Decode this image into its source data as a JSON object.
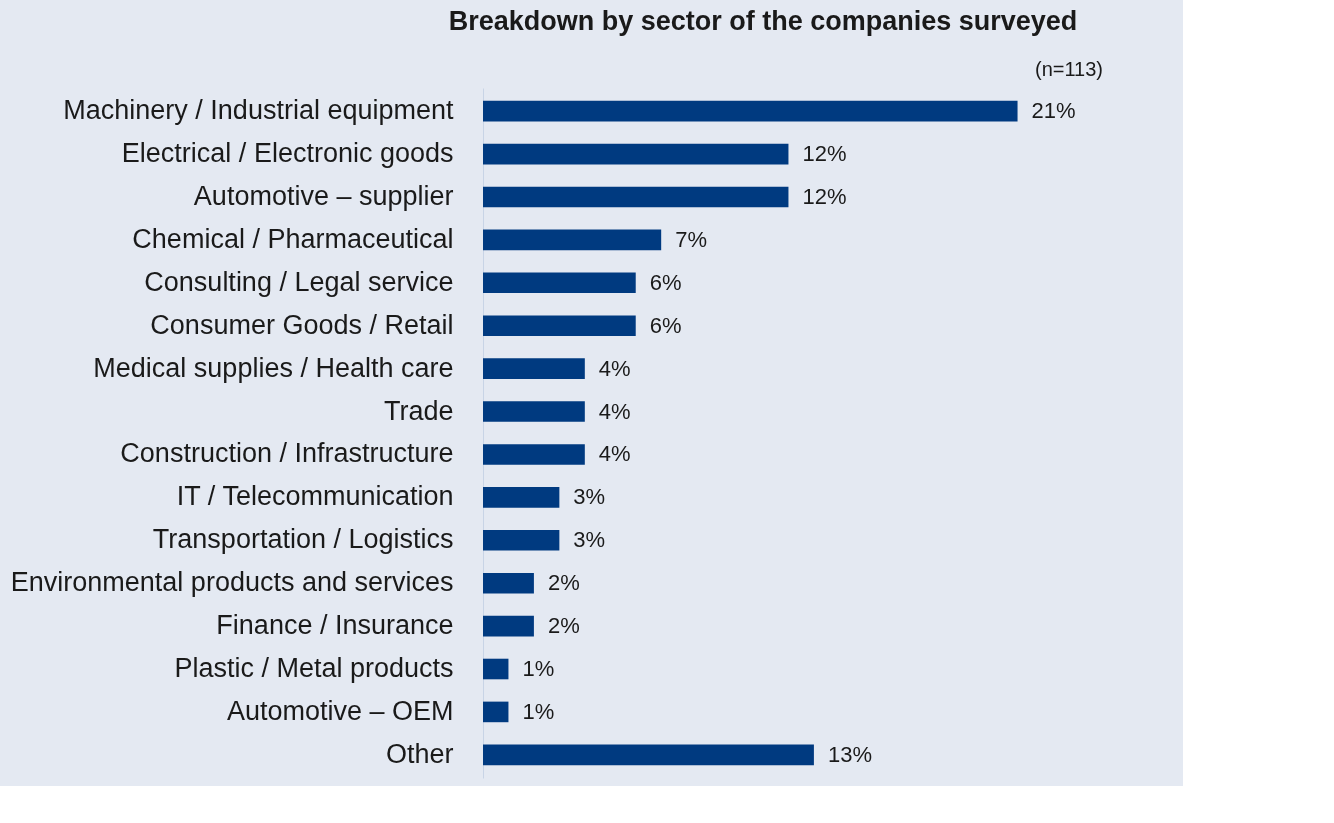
{
  "chart_data": {
    "type": "bar",
    "orientation": "horizontal",
    "title": "Breakdown by sector of the companies surveyed",
    "annotations": [
      "(n=113)"
    ],
    "categories": [
      "Machinery / Industrial equipment",
      "Electrical / Electronic goods",
      "Automotive – supplier",
      "Chemical / Pharmaceutical",
      "Consulting / Legal service",
      "Consumer Goods / Retail",
      "Medical supplies / Health care",
      "Trade",
      "Construction / Infrastructure",
      "IT / Telecommunication",
      "Transportation / Logistics",
      "Environmental products and services",
      "Finance / Insurance",
      "Plastic / Metal products",
      "Automotive – OEM",
      "Other"
    ],
    "values": [
      21,
      12,
      12,
      7,
      6,
      6,
      4,
      4,
      4,
      3,
      3,
      2,
      2,
      1,
      1,
      13
    ],
    "value_labels": [
      "21%",
      "12%",
      "12%",
      "7%",
      "6%",
      "6%",
      "4%",
      "4%",
      "4%",
      "3%",
      "3%",
      "2%",
      "2%",
      "1%",
      "1%",
      "13%"
    ],
    "color": "#003a80"
  }
}
